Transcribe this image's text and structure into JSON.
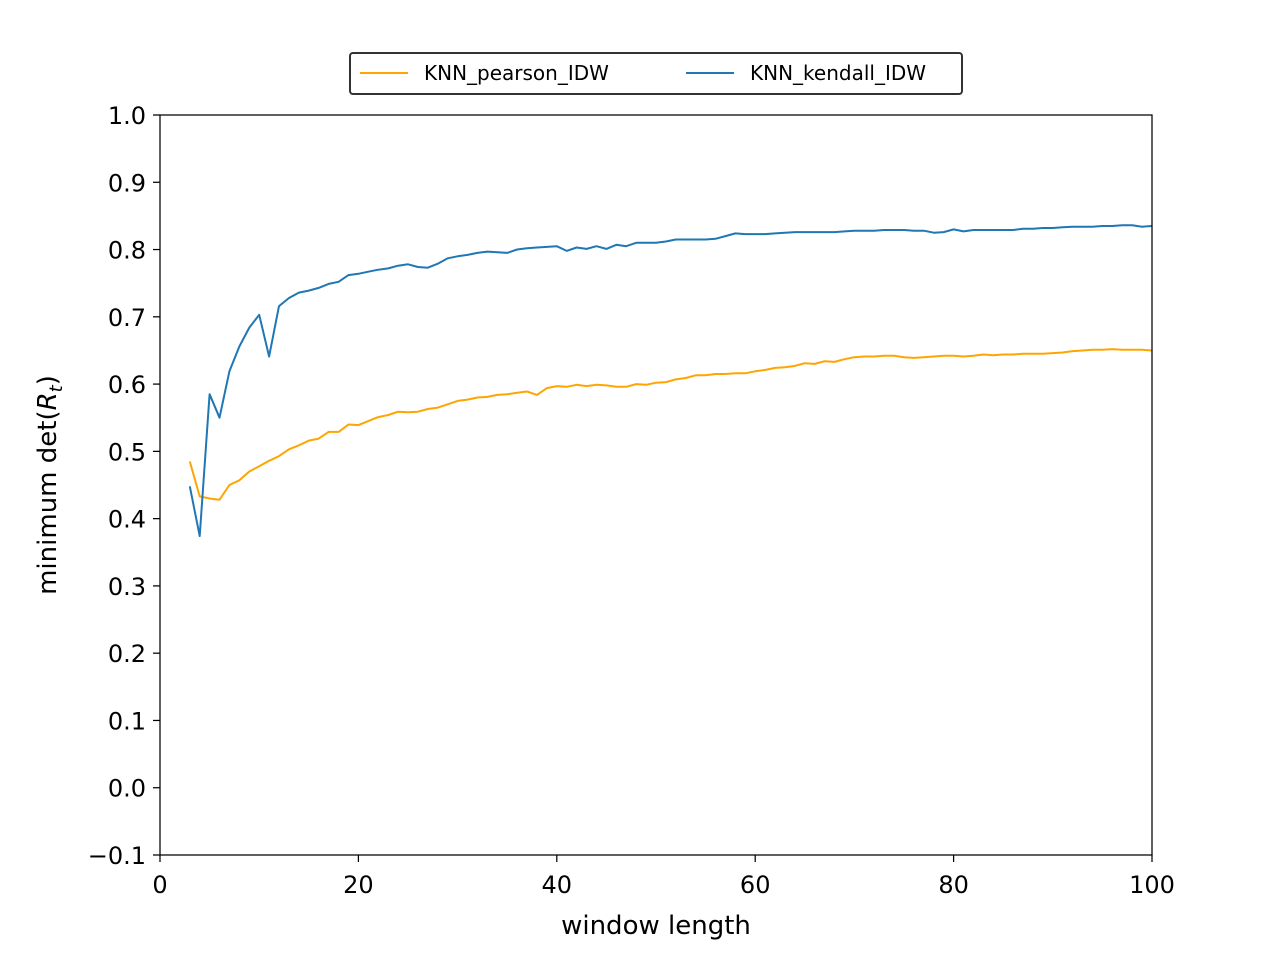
{
  "chart_data": {
    "type": "line",
    "title": "",
    "xlabel": "window length",
    "ylabel": {
      "prefix": "minimum det(",
      "var": "R",
      "sub": "t",
      "suffix": ")"
    },
    "xlim": [
      0,
      100
    ],
    "ylim": [
      -0.1,
      1.0
    ],
    "xticks": [
      0,
      20,
      40,
      60,
      80,
      100
    ],
    "xtick_labels": [
      "0",
      "20",
      "40",
      "60",
      "80",
      "100"
    ],
    "yticks": [
      -0.1,
      0.0,
      0.1,
      0.2,
      0.3,
      0.4,
      0.5,
      0.6,
      0.7,
      0.8,
      0.9,
      1.0
    ],
    "ytick_labels": [
      "−0.1",
      "0.0",
      "0.1",
      "0.2",
      "0.3",
      "0.4",
      "0.5",
      "0.6",
      "0.7",
      "0.8",
      "0.9",
      "1.0"
    ],
    "grid": false,
    "legend_position": "top-center, above plot",
    "x": [
      3,
      4,
      5,
      6,
      7,
      8,
      9,
      10,
      11,
      12,
      13,
      14,
      15,
      16,
      17,
      18,
      19,
      20,
      21,
      22,
      23,
      24,
      25,
      26,
      27,
      28,
      29,
      30,
      31,
      32,
      33,
      34,
      35,
      36,
      37,
      38,
      39,
      40,
      41,
      42,
      43,
      44,
      45,
      46,
      47,
      48,
      49,
      50,
      51,
      52,
      53,
      54,
      55,
      56,
      57,
      58,
      59,
      60,
      61,
      62,
      63,
      64,
      65,
      66,
      67,
      68,
      69,
      70,
      71,
      72,
      73,
      74,
      75,
      76,
      77,
      78,
      79,
      80,
      81,
      82,
      83,
      84,
      85,
      86,
      87,
      88,
      89,
      90,
      91,
      92,
      93,
      94,
      95,
      96,
      97,
      98,
      99,
      100
    ],
    "series": [
      {
        "name": "KNN_pearson_IDW",
        "color": "#ffa500",
        "values": [
          0.485,
          0.433,
          0.43,
          0.428,
          0.45,
          0.457,
          0.47,
          0.478,
          0.486,
          0.493,
          0.503,
          0.509,
          0.516,
          0.519,
          0.529,
          0.529,
          0.54,
          0.539,
          0.545,
          0.551,
          0.554,
          0.559,
          0.558,
          0.559,
          0.563,
          0.565,
          0.57,
          0.575,
          0.577,
          0.58,
          0.581,
          0.584,
          0.585,
          0.587,
          0.589,
          0.584,
          0.594,
          0.597,
          0.596,
          0.599,
          0.597,
          0.599,
          0.598,
          0.596,
          0.596,
          0.6,
          0.599,
          0.602,
          0.603,
          0.607,
          0.609,
          0.613,
          0.613,
          0.615,
          0.615,
          0.616,
          0.616,
          0.619,
          0.621,
          0.624,
          0.625,
          0.627,
          0.631,
          0.63,
          0.634,
          0.633,
          0.637,
          0.64,
          0.641,
          0.641,
          0.642,
          0.642,
          0.64,
          0.639,
          0.64,
          0.641,
          0.642,
          0.642,
          0.641,
          0.642,
          0.644,
          0.643,
          0.644,
          0.644,
          0.645,
          0.645,
          0.645,
          0.646,
          0.647,
          0.649,
          0.65,
          0.651,
          0.651,
          0.652,
          0.651,
          0.651,
          0.651,
          0.65
        ]
      },
      {
        "name": "KNN_kendall_IDW",
        "color": "#1f77b4",
        "values": [
          0.448,
          0.374,
          0.585,
          0.55,
          0.619,
          0.656,
          0.684,
          0.703,
          0.641,
          0.716,
          0.728,
          0.736,
          0.739,
          0.743,
          0.749,
          0.752,
          0.762,
          0.764,
          0.767,
          0.77,
          0.772,
          0.776,
          0.778,
          0.774,
          0.773,
          0.779,
          0.787,
          0.79,
          0.792,
          0.795,
          0.797,
          0.796,
          0.795,
          0.8,
          0.802,
          0.803,
          0.804,
          0.805,
          0.798,
          0.803,
          0.801,
          0.805,
          0.801,
          0.807,
          0.805,
          0.81,
          0.81,
          0.81,
          0.812,
          0.815,
          0.815,
          0.815,
          0.815,
          0.816,
          0.82,
          0.824,
          0.823,
          0.823,
          0.823,
          0.824,
          0.825,
          0.826,
          0.826,
          0.826,
          0.826,
          0.826,
          0.827,
          0.828,
          0.828,
          0.828,
          0.829,
          0.829,
          0.829,
          0.828,
          0.828,
          0.825,
          0.826,
          0.83,
          0.827,
          0.829,
          0.829,
          0.829,
          0.829,
          0.829,
          0.831,
          0.831,
          0.832,
          0.832,
          0.833,
          0.834,
          0.834,
          0.834,
          0.835,
          0.835,
          0.836,
          0.836,
          0.834,
          0.835
        ]
      }
    ]
  }
}
